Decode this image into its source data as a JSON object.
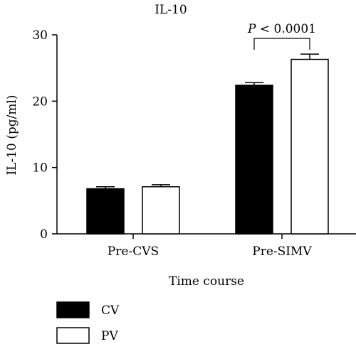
{
  "chart_data": {
    "type": "bar",
    "title": "IL-10",
    "xlabel": "Time course",
    "ylabel": "IL-10 (pg/ml)",
    "categories": [
      "Pre-CVS",
      "Pre-SIMV"
    ],
    "ylim": [
      0,
      30
    ],
    "yticks": [
      "0",
      "10",
      "20",
      "30"
    ],
    "series": [
      {
        "name": "CV",
        "values": [
          6.8,
          22.4
        ],
        "errors": [
          0.3,
          0.4
        ],
        "fill": "#000000"
      },
      {
        "name": "PV",
        "values": [
          7.1,
          26.3
        ],
        "errors": [
          0.3,
          0.8
        ],
        "fill": "#ffffff"
      }
    ],
    "annotation": {
      "label": "P < 0.0001",
      "category": "Pre-SIMV"
    },
    "legend_position": "bottom-left",
    "grid": false
  }
}
